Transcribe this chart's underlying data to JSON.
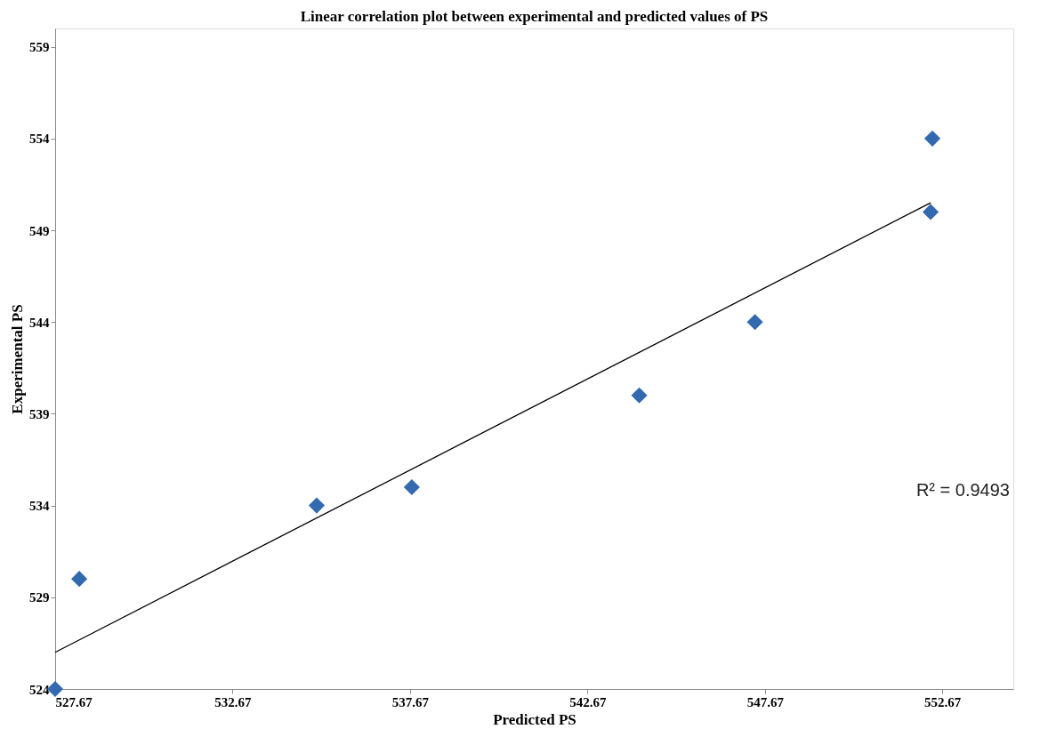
{
  "chart_data": {
    "type": "scatter",
    "title": "Linear correlation plot between experimental and predicted values of PS",
    "xlabel": "Predicted PS",
    "ylabel": "Experimental PS",
    "xlim": [
      527.67,
      554.67
    ],
    "xticks": [
      527.67,
      532.67,
      537.67,
      542.67,
      547.67,
      552.67
    ],
    "ylim": [
      524,
      560
    ],
    "yticks": [
      524,
      529,
      534,
      539,
      544,
      549,
      554,
      559
    ],
    "grid": false,
    "series": [
      {
        "marker": "diamond",
        "color": "#336aaf",
        "x": [
          527.67,
          528.35,
          535.04,
          537.72,
          544.13,
          547.39,
          552.34,
          552.39
        ],
        "values": [
          524,
          530,
          534,
          535,
          540,
          544,
          550,
          554
        ]
      },
      {
        "type": "line",
        "color": "#000000",
        "line_style": "solid",
        "marker": "none",
        "x": [
          527.67,
          552.34
        ],
        "values": [
          526.0,
          550.5
        ]
      }
    ],
    "annotations": [
      "R² = 0.9493"
    ]
  }
}
